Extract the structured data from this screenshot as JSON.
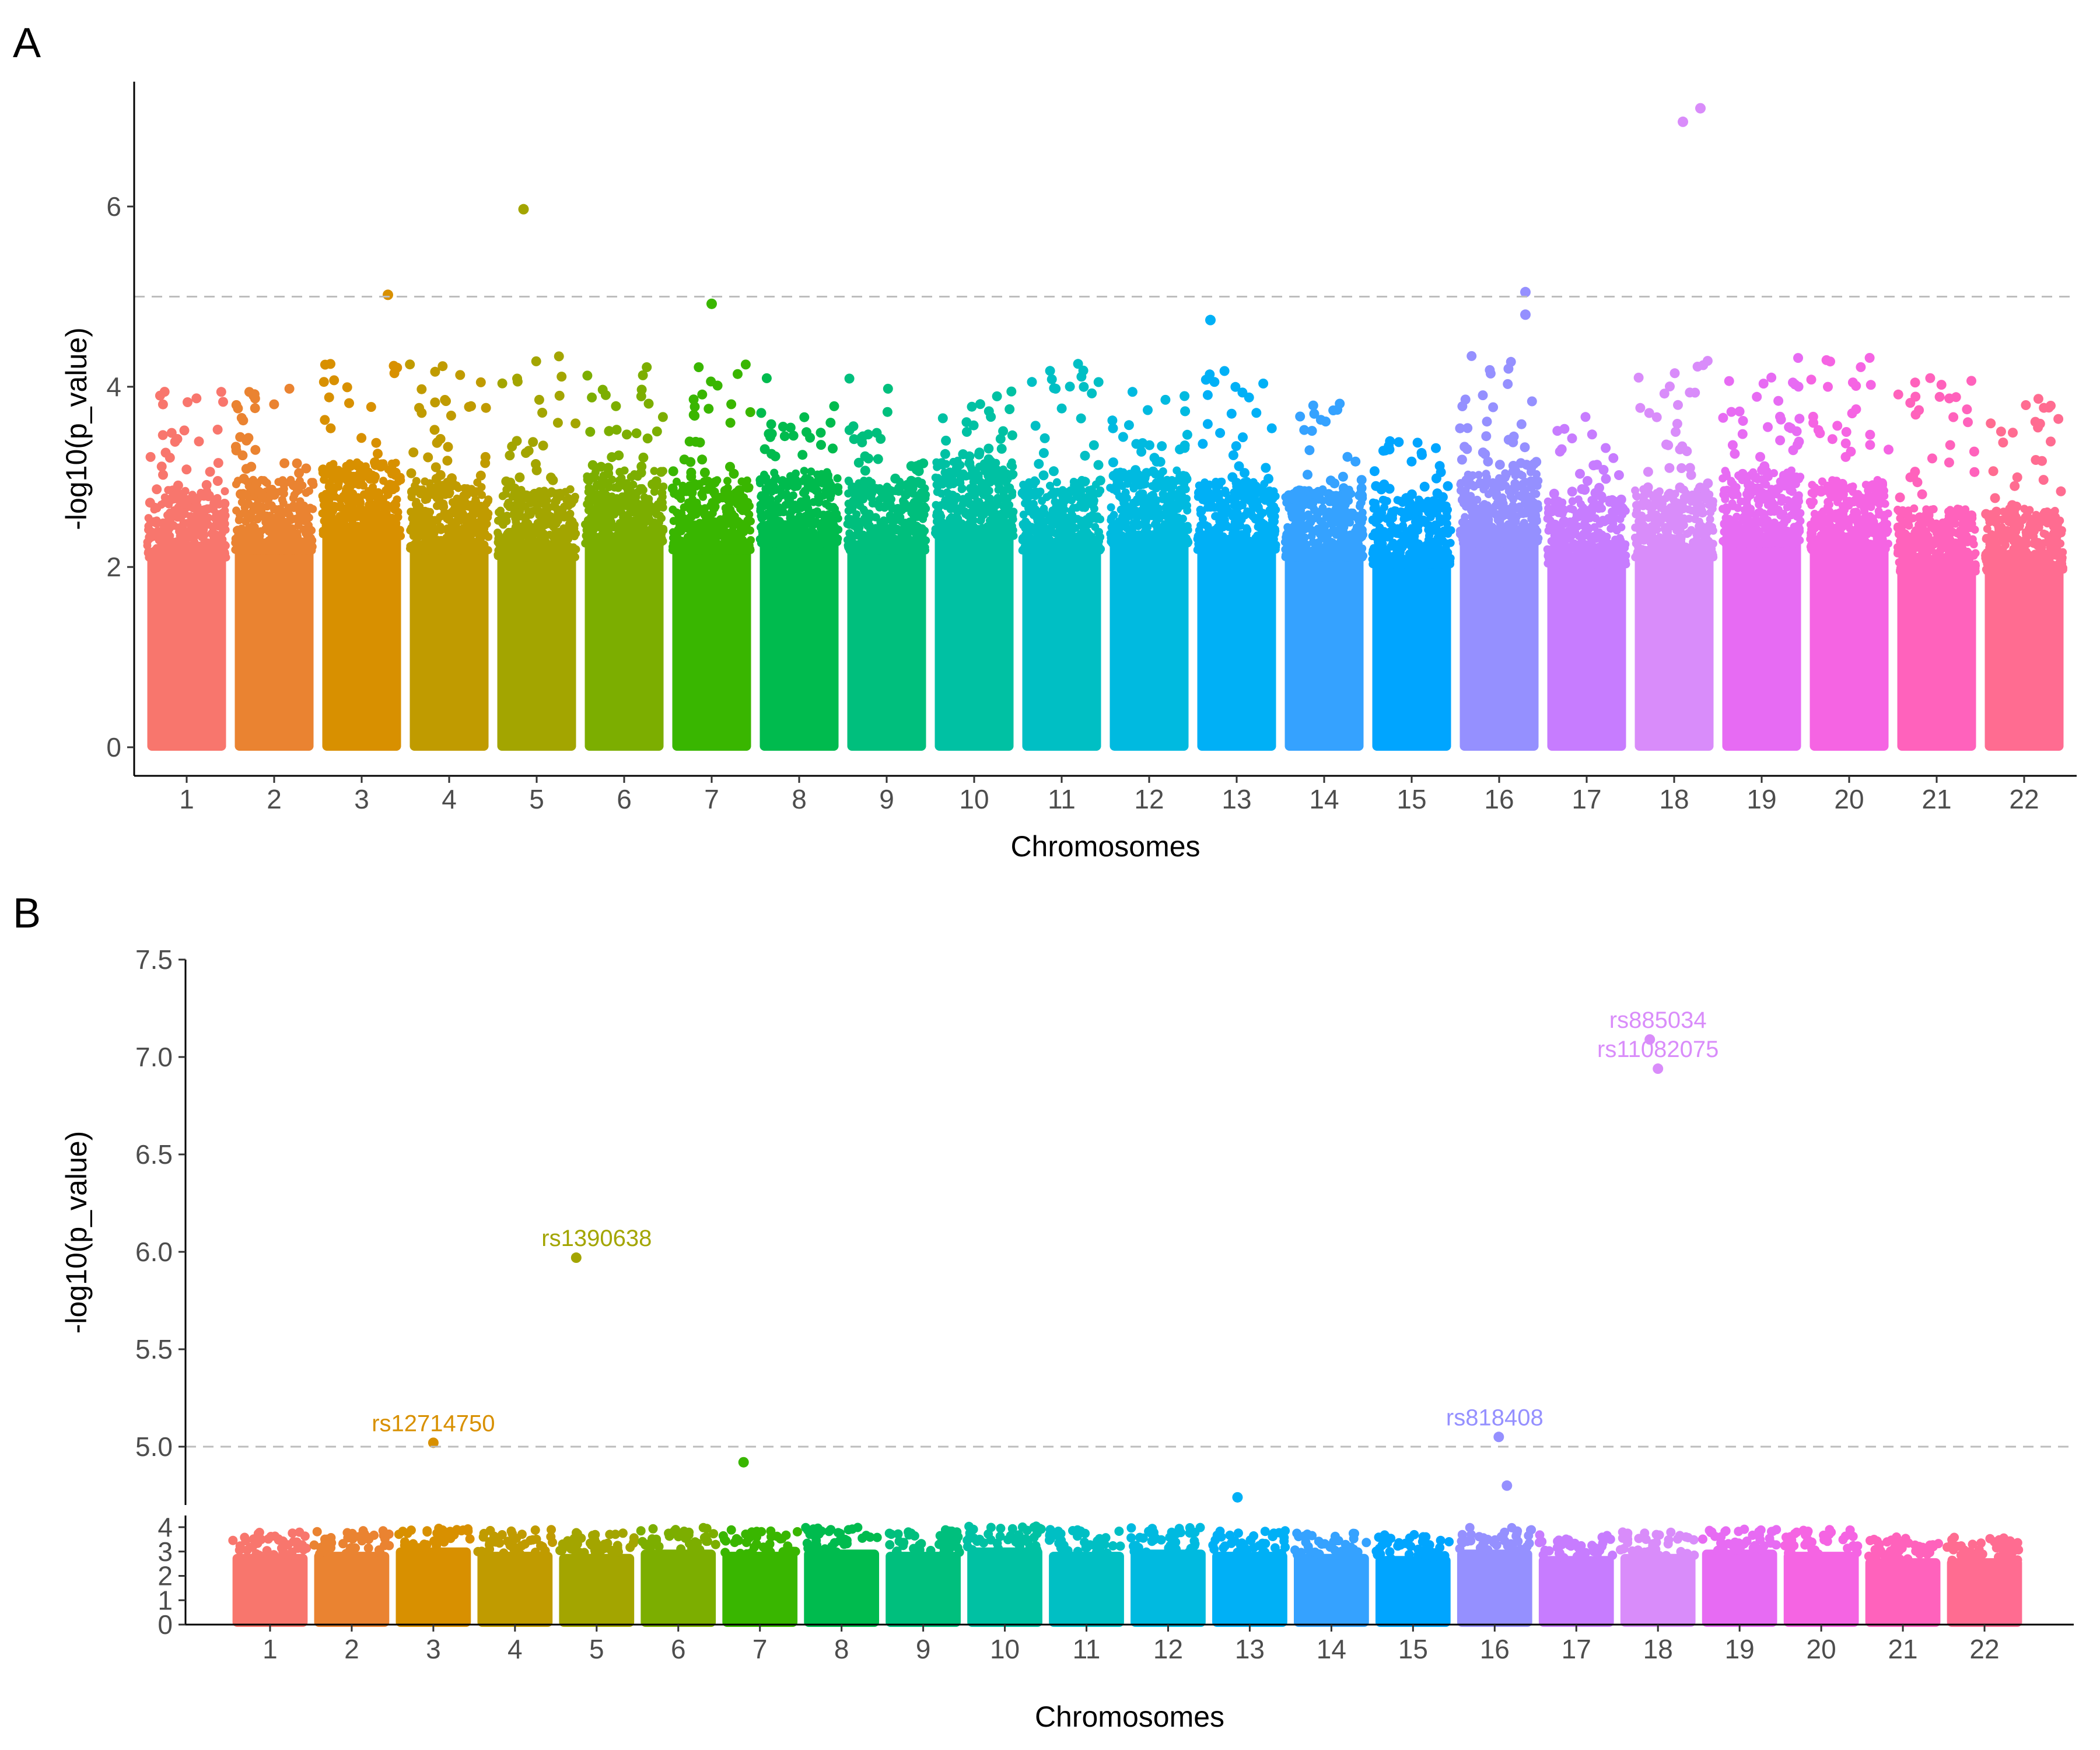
{
  "figure": {
    "panel_a_tag": "A",
    "panel_b_tag": "B"
  },
  "chart_data": [
    {
      "panel": "A",
      "type": "scatter",
      "subtype": "manhattan",
      "xlabel": "Chromosomes",
      "ylabel": "-log10(p_value)",
      "ylim": [
        0,
        7.2
      ],
      "yticks": [
        0,
        2,
        4,
        6
      ],
      "grid": false,
      "legend": "none",
      "threshold": 5,
      "categories": [
        "1",
        "2",
        "3",
        "4",
        "5",
        "6",
        "7",
        "8",
        "9",
        "10",
        "11",
        "12",
        "13",
        "14",
        "15",
        "16",
        "17",
        "18",
        "19",
        "20",
        "21",
        "22"
      ],
      "colors": [
        "#F8766D",
        "#EA8331",
        "#D89000",
        "#C09B00",
        "#A3A500",
        "#7CAE00",
        "#39B600",
        "#00BB4E",
        "#00BF7D",
        "#00C1A3",
        "#00BFC4",
        "#00BAE0",
        "#00B0F6",
        "#35A2FF",
        "#00A5FF",
        "#9590FF",
        "#C77CFF",
        "#D98CFA",
        "#E76BF3",
        "#F564E3",
        "#FF62BC",
        "#FF6C91"
      ],
      "dense_top": [
        2.7,
        2.8,
        3.0,
        2.8,
        2.7,
        2.9,
        2.8,
        2.9,
        2.8,
        3.0,
        2.8,
        2.9,
        2.8,
        2.7,
        2.6,
        2.9,
        2.6,
        2.7,
        2.9,
        2.8,
        2.5,
        2.5
      ],
      "chrom_max": [
        4.0,
        4.0,
        5.02,
        4.7,
        5.97,
        4.3,
        4.92,
        4.1,
        4.25,
        3.95,
        4.35,
        3.95,
        4.75,
        3.85,
        3.45,
        5.05,
        3.7,
        7.09,
        4.4,
        4.65,
        4.12,
        3.88
      ],
      "peaks": [
        {
          "chr": 3,
          "pos": 0.8,
          "y": 5.02
        },
        {
          "chr": 5,
          "pos": 0.35,
          "y": 5.97
        },
        {
          "chr": 7,
          "pos": 0.5,
          "y": 4.92
        },
        {
          "chr": 13,
          "pos": 0.2,
          "y": 4.74
        },
        {
          "chr": 16,
          "pos": 0.8,
          "y": 5.05
        },
        {
          "chr": 16,
          "pos": 0.8,
          "y": 4.8
        },
        {
          "chr": 18,
          "pos": 0.6,
          "y": 6.94
        },
        {
          "chr": 18,
          "pos": 0.8,
          "y": 7.09
        }
      ]
    },
    {
      "panel": "B",
      "type": "scatter",
      "subtype": "manhattan-broken-axis",
      "xlabel": "Chromosomes",
      "ylabel": "-log10(p_value)",
      "ylim_lower": [
        0,
        4.2
      ],
      "ylim_upper": [
        4.78,
        7.5
      ],
      "yticks_lower": [
        0,
        1,
        2,
        3,
        4
      ],
      "yticks_upper": [
        5.0,
        5.5,
        6.0,
        6.5,
        7.0,
        7.5
      ],
      "ytick_labels_upper": [
        "5.0",
        "5.5",
        "6.0",
        "6.5",
        "7.0",
        "7.5"
      ],
      "grid": false,
      "legend": "none",
      "threshold": 5,
      "categories": [
        "1",
        "2",
        "3",
        "4",
        "5",
        "6",
        "7",
        "8",
        "9",
        "10",
        "11",
        "12",
        "13",
        "14",
        "15",
        "16",
        "17",
        "18",
        "19",
        "20",
        "21",
        "22"
      ],
      "peaks": [
        {
          "chr": 3,
          "pos": 0.5,
          "y": 5.02
        },
        {
          "chr": 5,
          "pos": 0.25,
          "y": 5.97
        },
        {
          "chr": 7,
          "pos": 0.3,
          "y": 4.92
        },
        {
          "chr": 13,
          "pos": 0.35,
          "y": 4.74
        },
        {
          "chr": 16,
          "pos": 0.55,
          "y": 5.05
        },
        {
          "chr": 16,
          "pos": 0.65,
          "y": 4.8
        },
        {
          "chr": 18,
          "pos": 0.4,
          "y": 7.09
        },
        {
          "chr": 18,
          "pos": 0.5,
          "y": 6.94
        }
      ],
      "annotations": [
        {
          "text": "rs885034",
          "chr": 18,
          "y": 7.09
        },
        {
          "text": "rs11082075",
          "chr": 18,
          "y": 6.94
        },
        {
          "text": "rs1390638",
          "chr": 5,
          "y": 5.97
        },
        {
          "text": "rs12714750",
          "chr": 3,
          "y": 5.02
        },
        {
          "text": "rs818408",
          "chr": 16,
          "y": 5.05
        }
      ]
    }
  ]
}
